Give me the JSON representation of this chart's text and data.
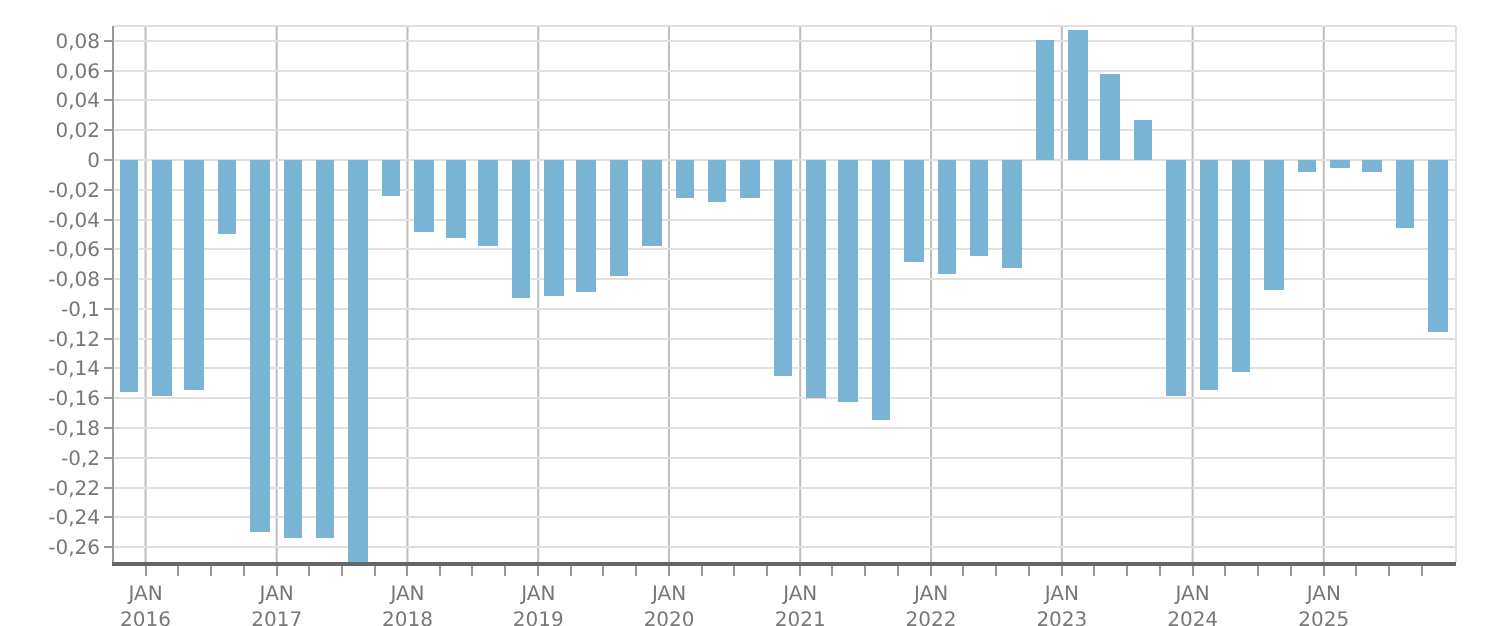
{
  "chart_data": {
    "type": "bar",
    "color": "#7ab3d4",
    "grid": true,
    "x": [
      "2015-11-15",
      "2016-02-15",
      "2016-05-15",
      "2016-08-15",
      "2016-11-15",
      "2017-02-15",
      "2017-05-15",
      "2017-08-15",
      "2017-11-15",
      "2018-02-15",
      "2018-05-15",
      "2018-08-15",
      "2018-11-15",
      "2019-02-15",
      "2019-05-15",
      "2019-08-15",
      "2019-11-15",
      "2020-02-15",
      "2020-05-15",
      "2020-08-15",
      "2020-11-15",
      "2021-02-15",
      "2021-05-15",
      "2021-08-15",
      "2021-11-15",
      "2022-02-15",
      "2022-05-15",
      "2022-08-15",
      "2022-11-15",
      "2023-02-15",
      "2023-05-15",
      "2023-08-15",
      "2023-11-15",
      "2024-02-15",
      "2024-05-15",
      "2024-08-15",
      "2024-11-15",
      "2025-02-15",
      "2025-05-15",
      "2025-08-15",
      "2025-11-15"
    ],
    "values": [
      -0.156,
      -0.158,
      -0.155,
      -0.05,
      -0.25,
      -0.254,
      -0.254,
      -0.27,
      -0.024,
      -0.049,
      -0.052,
      -0.058,
      -0.093,
      -0.091,
      -0.089,
      -0.078,
      -0.058,
      -0.026,
      -0.028,
      -0.026,
      -0.145,
      -0.16,
      -0.163,
      -0.174,
      -0.069,
      -0.076,
      -0.065,
      -0.073,
      0.081,
      0.087,
      0.058,
      0.027,
      -0.158,
      -0.155,
      -0.143,
      -0.087,
      -0.008,
      -0.005,
      -0.008,
      -0.045,
      -0.116
    ],
    "xlim": [
      "2015-10-05",
      "2026-01-05"
    ],
    "xticks": [
      {
        "value": "2016-01-01",
        "label": "JAN\n2016"
      },
      {
        "value": "2016-04-01",
        "label": null
      },
      {
        "value": "2016-07-01",
        "label": null
      },
      {
        "value": "2016-10-01",
        "label": null
      },
      {
        "value": "2017-01-01",
        "label": "JAN\n2017"
      },
      {
        "value": "2017-04-01",
        "label": null
      },
      {
        "value": "2017-07-01",
        "label": null
      },
      {
        "value": "2017-10-01",
        "label": null
      },
      {
        "value": "2018-01-01",
        "label": "JAN\n2018"
      },
      {
        "value": "2018-04-01",
        "label": null
      },
      {
        "value": "2018-07-01",
        "label": null
      },
      {
        "value": "2018-10-01",
        "label": null
      },
      {
        "value": "2019-01-01",
        "label": "JAN\n2019"
      },
      {
        "value": "2019-04-01",
        "label": null
      },
      {
        "value": "2019-07-01",
        "label": null
      },
      {
        "value": "2019-10-01",
        "label": null
      },
      {
        "value": "2020-01-01",
        "label": "JAN\n2020"
      },
      {
        "value": "2020-04-01",
        "label": null
      },
      {
        "value": "2020-07-01",
        "label": null
      },
      {
        "value": "2020-10-01",
        "label": null
      },
      {
        "value": "2021-01-01",
        "label": "JAN\n2021"
      },
      {
        "value": "2021-04-01",
        "label": null
      },
      {
        "value": "2021-07-01",
        "label": null
      },
      {
        "value": "2021-10-01",
        "label": null
      },
      {
        "value": "2022-01-01",
        "label": "JAN\n2022"
      },
      {
        "value": "2022-04-01",
        "label": null
      },
      {
        "value": "2022-07-01",
        "label": null
      },
      {
        "value": "2022-10-01",
        "label": null
      },
      {
        "value": "2023-01-01",
        "label": "JAN\n2023"
      },
      {
        "value": "2023-04-01",
        "label": null
      },
      {
        "value": "2023-07-01",
        "label": null
      },
      {
        "value": "2023-10-01",
        "label": null
      },
      {
        "value": "2024-01-01",
        "label": "JAN\n2024"
      },
      {
        "value": "2024-04-01",
        "label": null
      },
      {
        "value": "2024-07-01",
        "label": null
      },
      {
        "value": "2024-10-01",
        "label": null
      },
      {
        "value": "2025-01-01",
        "label": "JAN\n2025"
      },
      {
        "value": "2025-04-01",
        "label": null
      },
      {
        "value": "2025-07-01",
        "label": null
      },
      {
        "value": "2025-10-01",
        "label": null
      }
    ],
    "ylim": [
      -0.27,
      0.09
    ],
    "yticks": [
      {
        "value": 0.08,
        "label": "0,08"
      },
      {
        "value": 0.06,
        "label": "0,06"
      },
      {
        "value": 0.04,
        "label": "0,04"
      },
      {
        "value": 0.02,
        "label": "0,02"
      },
      {
        "value": 0,
        "label": "0"
      },
      {
        "value": -0.02,
        "label": "-0,02"
      },
      {
        "value": -0.04,
        "label": "-0,04"
      },
      {
        "value": -0.06,
        "label": "-0,06"
      },
      {
        "value": -0.08,
        "label": "-0,08"
      },
      {
        "value": -0.1,
        "label": "-0,1"
      },
      {
        "value": -0.12,
        "label": "-0,12"
      },
      {
        "value": -0.14,
        "label": "-0,14"
      },
      {
        "value": -0.16,
        "label": "-0,16"
      },
      {
        "value": -0.18,
        "label": "-0,18"
      },
      {
        "value": -0.2,
        "label": "-0,2"
      },
      {
        "value": -0.22,
        "label": "-0,22"
      },
      {
        "value": -0.24,
        "label": "-0,24"
      },
      {
        "value": -0.26,
        "label": "-0,26"
      }
    ]
  }
}
